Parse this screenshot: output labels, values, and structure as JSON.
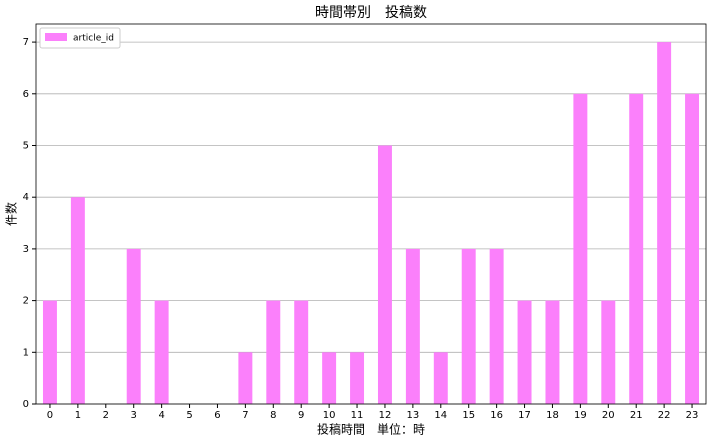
{
  "chart_data": {
    "type": "bar",
    "title": "時間帯別　投稿数",
    "xlabel": "投稿時間　単位：時",
    "ylabel": "件数",
    "categories": [
      "0",
      "1",
      "2",
      "3",
      "4",
      "5",
      "6",
      "7",
      "8",
      "9",
      "10",
      "11",
      "12",
      "13",
      "14",
      "15",
      "16",
      "17",
      "18",
      "19",
      "20",
      "21",
      "22",
      "23"
    ],
    "series": [
      {
        "name": "article_id",
        "color": "#fb80fb",
        "values": [
          2,
          4,
          0,
          3,
          2,
          0,
          0,
          1,
          2,
          2,
          1,
          1,
          5,
          3,
          1,
          3,
          3,
          2,
          2,
          6,
          2,
          6,
          7,
          6
        ]
      }
    ],
    "ylim": [
      0,
      7.35
    ],
    "yticks": [
      0,
      1,
      2,
      3,
      4,
      5,
      6,
      7
    ],
    "grid": "y",
    "legend": "upper-left"
  }
}
